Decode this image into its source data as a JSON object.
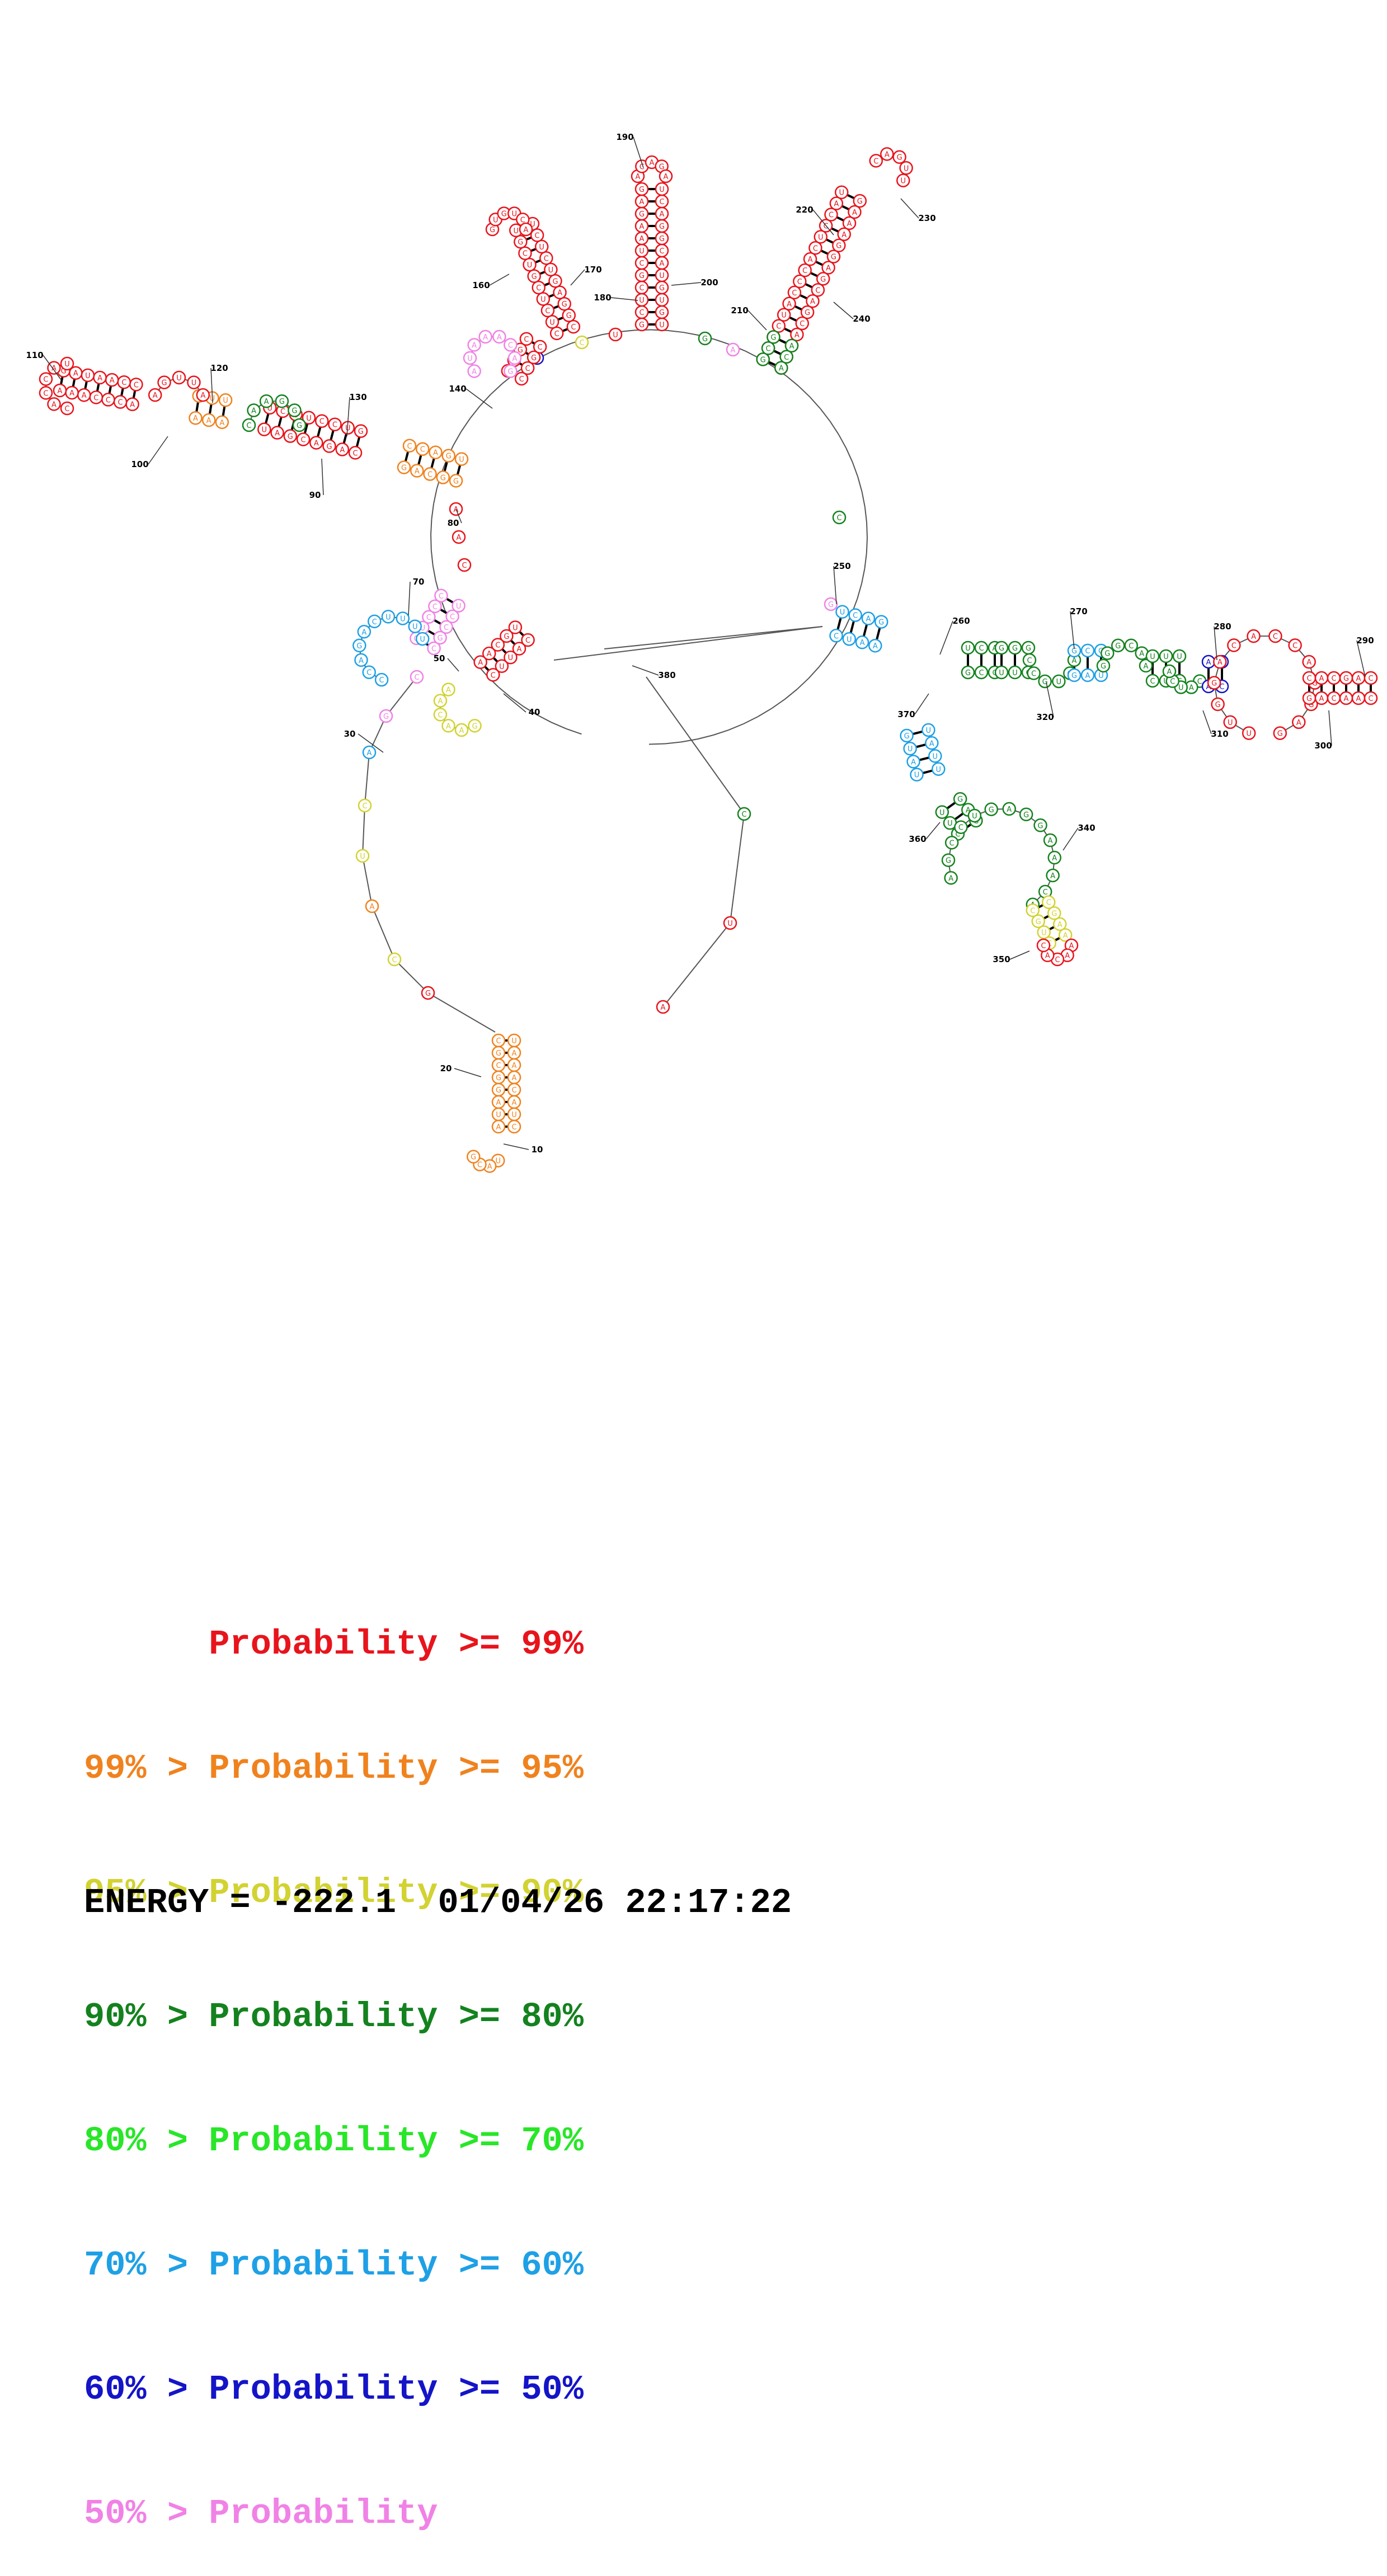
{
  "diagram": {
    "position_labels": [
      "10",
      "20",
      "30",
      "40",
      "50",
      "70",
      "80",
      "90",
      "100",
      "110",
      "120",
      "130",
      "140",
      "160",
      "170",
      "180",
      "190",
      "200",
      "210",
      "220",
      "230",
      "240",
      "250",
      "260",
      "270",
      "280",
      "290",
      "300",
      "310",
      "320",
      "340",
      "350",
      "360",
      "370",
      "380"
    ]
  },
  "colors": {
    "p99": "#e8141c",
    "p95": "#f0821e",
    "p90": "#d2d232",
    "p80": "#14821e",
    "p70": "#28e628",
    "p60": "#1ea0e6",
    "p50": "#1414c8",
    "plow": "#f082e6"
  },
  "legend": {
    "rows": [
      {
        "prefix": "",
        "text": "Probability >= 99%",
        "color": "#e8141c"
      },
      {
        "prefix": "99% > ",
        "text": "Probability >= 95%",
        "color": "#f0821e"
      },
      {
        "prefix": "95% > ",
        "text": "Probability >= 90%",
        "color": "#d2d232"
      },
      {
        "prefix": "90% > ",
        "text": "Probability >= 80%",
        "color": "#14821e"
      },
      {
        "prefix": "80% > ",
        "text": "Probability >= 70%",
        "color": "#28e628"
      },
      {
        "prefix": "70% > ",
        "text": "Probability >= 60%",
        "color": "#1ea0e6"
      },
      {
        "prefix": "60% > ",
        "text": "Probability >= 50%",
        "color": "#1414c8"
      },
      {
        "prefix": "50% > ",
        "text": "Probability",
        "color": "#f082e6"
      }
    ]
  },
  "footer": {
    "energy": "ENERGY = -222.1",
    "timestamp": "01/04/26 22:17:22"
  }
}
